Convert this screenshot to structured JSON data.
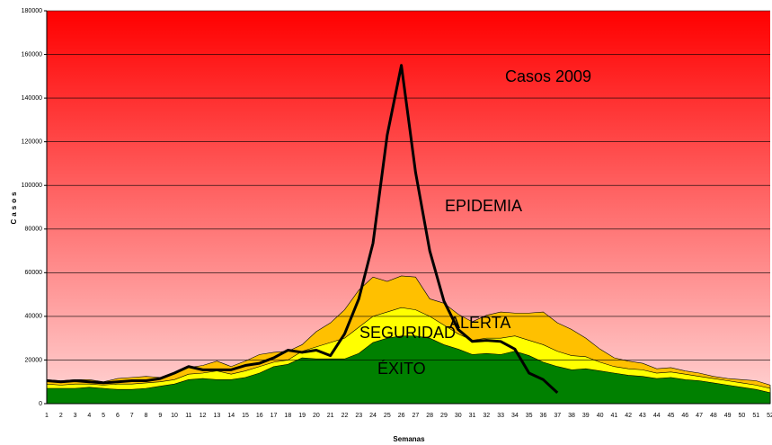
{
  "chart_data": {
    "type": "area",
    "y_label": "Casos",
    "x_label": "Semanas",
    "categories": [
      "1",
      "2",
      "3",
      "4",
      "5",
      "6",
      "7",
      "8",
      "9",
      "10",
      "11",
      "12",
      "13",
      "14",
      "15",
      "16",
      "17",
      "18",
      "19",
      "20",
      "21",
      "22",
      "23",
      "24",
      "25",
      "26",
      "27",
      "28",
      "29",
      "30",
      "31",
      "32",
      "33",
      "34",
      "35",
      "36",
      "37",
      "38",
      "39",
      "40",
      "41",
      "42",
      "43",
      "44",
      "45",
      "46",
      "47",
      "48",
      "49",
      "50",
      "51",
      "52"
    ],
    "ylim": [
      0,
      180000
    ],
    "yticks": [
      0,
      20000,
      40000,
      60000,
      80000,
      100000,
      120000,
      140000,
      160000,
      180000
    ],
    "grid": true,
    "background_label": "EPIDEMIA",
    "background_colors": [
      "#ff0000",
      "#ffd6d6"
    ],
    "series": [
      {
        "name": "ALERTA",
        "type": "area",
        "color": "#ffc000",
        "values": [
          11000,
          10500,
          11000,
          11000,
          10000,
          11500,
          12000,
          12500,
          12000,
          14000,
          16500,
          17500,
          19500,
          17000,
          19500,
          22500,
          23500,
          24000,
          27000,
          33000,
          37000,
          43000,
          52000,
          58000,
          56000,
          58500,
          58000,
          48000,
          46000,
          41000,
          37500,
          40500,
          42000,
          41500,
          41500,
          42000,
          37000,
          34000,
          30000,
          25000,
          21000,
          19500,
          18500,
          16000,
          16500,
          15000,
          14000,
          12500,
          11500,
          11000,
          10500,
          8500
        ]
      },
      {
        "name": "SEGURIDAD",
        "type": "area",
        "color": "#ffff00",
        "values": [
          9000,
          8500,
          9000,
          9000,
          8500,
          9000,
          9000,
          9500,
          10000,
          11000,
          13500,
          14000,
          15000,
          13500,
          15000,
          17000,
          19000,
          20000,
          24000,
          26000,
          28000,
          30000,
          35000,
          40000,
          42000,
          44000,
          43000,
          40000,
          36000,
          32000,
          29000,
          30000,
          30000,
          31000,
          29000,
          27000,
          24000,
          22000,
          21500,
          19000,
          17000,
          16000,
          15500,
          14000,
          14500,
          13500,
          12500,
          11500,
          10500,
          9500,
          8500,
          7000
        ]
      },
      {
        "name": "ÉXITO",
        "type": "area",
        "color": "#008000",
        "values": [
          7000,
          7000,
          7000,
          7500,
          7000,
          6500,
          6500,
          7000,
          8000,
          9000,
          11000,
          11500,
          11000,
          11000,
          12000,
          14000,
          17000,
          18000,
          21000,
          20500,
          20500,
          20500,
          23000,
          28000,
          30000,
          31000,
          31000,
          30000,
          27000,
          25000,
          22500,
          23000,
          22500,
          24000,
          22000,
          19000,
          17000,
          15500,
          16000,
          15000,
          14000,
          13000,
          12500,
          11500,
          12000,
          11000,
          10500,
          9500,
          8500,
          7500,
          6500,
          5000
        ]
      },
      {
        "name": "Casos 2009",
        "type": "line",
        "color": "#000000",
        "values": [
          10500,
          10000,
          10500,
          10000,
          9500,
          10000,
          10500,
          10500,
          11500,
          14000,
          17000,
          15500,
          15500,
          15500,
          17500,
          18500,
          21000,
          24500,
          23500,
          24500,
          22000,
          32000,
          48000,
          73500,
          123000,
          155000,
          106000,
          70000,
          47000,
          34000,
          28500,
          29000,
          28500,
          25000,
          14000,
          11000,
          5000,
          null,
          null,
          null,
          null,
          null,
          null,
          null,
          null,
          null,
          null,
          null,
          null,
          null,
          null,
          null
        ]
      }
    ]
  }
}
